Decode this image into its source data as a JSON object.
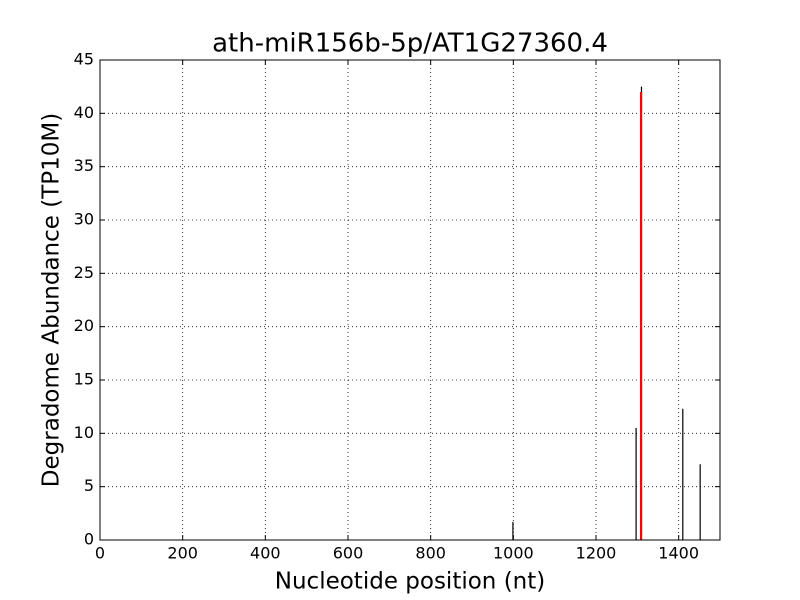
{
  "chart_data": {
    "type": "stem",
    "title": "ath-miR156b-5p/AT1G27360.4",
    "x_label": "Nucleotide position (nt)",
    "y_label": "Degradome Abundance (TP10M)",
    "series": [
      {
        "color": "#000000",
        "x": [
          999,
          1297,
          1310,
          1410,
          1452
        ],
        "values": [
          1.7,
          10.5,
          42.5,
          12.3,
          7.1
        ]
      },
      {
        "color": "#ff0000",
        "x": [
          1309
        ],
        "values": [
          42
        ]
      }
    ],
    "xlim": [
      0,
      1500
    ],
    "xticks": [
      0,
      200,
      400,
      600,
      800,
      1000,
      1200,
      1400
    ],
    "ylim": [
      0,
      45
    ],
    "yticks": [
      0,
      5,
      10,
      15,
      20,
      25,
      30,
      35,
      40,
      45
    ],
    "grid": true
  }
}
